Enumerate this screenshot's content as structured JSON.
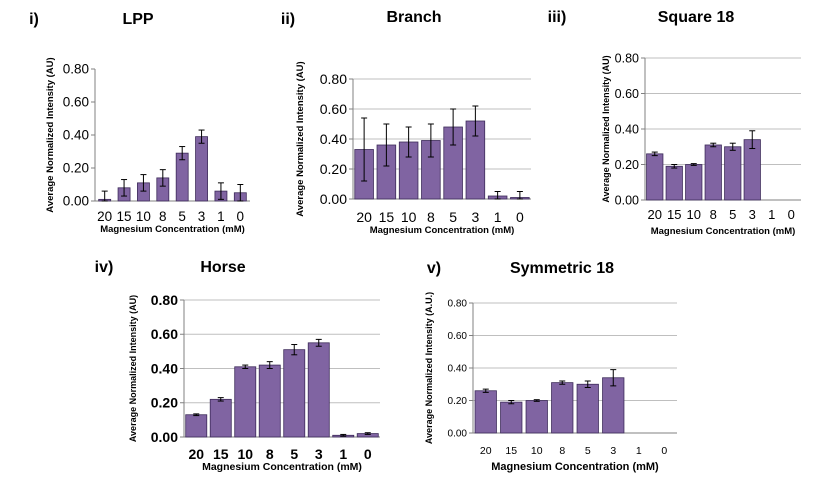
{
  "chart_data": [
    {
      "type": "bar",
      "panel_label": "i)",
      "title": "LPP",
      "xlabel": "Magnesium Concentration (mM)",
      "ylabel": "Average Normalized Intensity (AU)",
      "categories": [
        "20",
        "15",
        "10",
        "8",
        "5",
        "3",
        "1",
        "0"
      ],
      "values": [
        0.01,
        0.08,
        0.11,
        0.14,
        0.29,
        0.39,
        0.06,
        0.05
      ],
      "errors": [
        0.05,
        0.05,
        0.05,
        0.05,
        0.04,
        0.04,
        0.05,
        0.05
      ],
      "yticks": [
        "0.00",
        "0.20",
        "0.40",
        "0.60",
        "0.80"
      ],
      "ylim": [
        0,
        0.8
      ],
      "grid": false,
      "bar_color": "#8064a2"
    },
    {
      "type": "bar",
      "panel_label": "ii)",
      "title": "Branch",
      "xlabel": "Magnesium Concentration (mM)",
      "ylabel": "Average Normalized Intensity (AU)",
      "categories": [
        "20",
        "15",
        "10",
        "8",
        "5",
        "3",
        "1",
        "0"
      ],
      "values": [
        0.33,
        0.36,
        0.38,
        0.39,
        0.48,
        0.52,
        0.02,
        0.01
      ],
      "errors": [
        0.21,
        0.14,
        0.1,
        0.11,
        0.12,
        0.1,
        0.03,
        0.04
      ],
      "yticks": [
        "0.00",
        "0.20",
        "0.40",
        "0.60",
        "0.80"
      ],
      "ylim": [
        0,
        0.8
      ],
      "grid": true,
      "bar_color": "#8064a2"
    },
    {
      "type": "bar",
      "panel_label": "iii)",
      "title": "Square 18",
      "xlabel": "Magnesium Concentration (mM)",
      "ylabel": "Average Normalized Intensity (AU)",
      "categories": [
        "20",
        "15",
        "10",
        "8",
        "5",
        "3",
        "1",
        "0"
      ],
      "values": [
        0.26,
        0.19,
        0.2,
        0.31,
        0.3,
        0.34,
        0,
        0
      ],
      "errors": [
        0.01,
        0.01,
        0.005,
        0.01,
        0.02,
        0.05,
        0,
        0
      ],
      "yticks": [
        "0.00",
        "0.20",
        "0.40",
        "0.60",
        "0.80"
      ],
      "ylim": [
        0,
        0.8
      ],
      "grid": true,
      "bar_color": "#8064a2"
    },
    {
      "type": "bar",
      "panel_label": "iv)",
      "title": "Horse",
      "xlabel": "Magnesium Concentration (mM)",
      "ylabel": "Average Normalized Intensity (AU)",
      "categories": [
        "20",
        "15",
        "10",
        "8",
        "5",
        "3",
        "1",
        "0"
      ],
      "values": [
        0.13,
        0.22,
        0.41,
        0.42,
        0.51,
        0.55,
        0.01,
        0.02
      ],
      "errors": [
        0.005,
        0.01,
        0.01,
        0.02,
        0.03,
        0.02,
        0.005,
        0.005
      ],
      "yticks": [
        "0.00",
        "0.20",
        "0.40",
        "0.60",
        "0.80"
      ],
      "ylim": [
        0,
        0.8
      ],
      "grid": true,
      "bar_color": "#8064a2"
    },
    {
      "type": "bar",
      "panel_label": "v)",
      "title": "Symmetric 18",
      "xlabel": "Magnesium Concentration (mM)",
      "ylabel": "Average Normalized Intensity (A.U.)",
      "categories": [
        "20",
        "15",
        "10",
        "8",
        "5",
        "3",
        "1",
        "0"
      ],
      "values": [
        0.26,
        0.19,
        0.2,
        0.31,
        0.3,
        0.34,
        0,
        0
      ],
      "errors": [
        0.01,
        0.01,
        0.005,
        0.01,
        0.02,
        0.05,
        0,
        0
      ],
      "yticks": [
        "0.00",
        "0.20",
        "0.40",
        "0.60",
        "0.80"
      ],
      "ylim": [
        0,
        0.8
      ],
      "grid": true,
      "bar_color": "#8064a2"
    }
  ]
}
